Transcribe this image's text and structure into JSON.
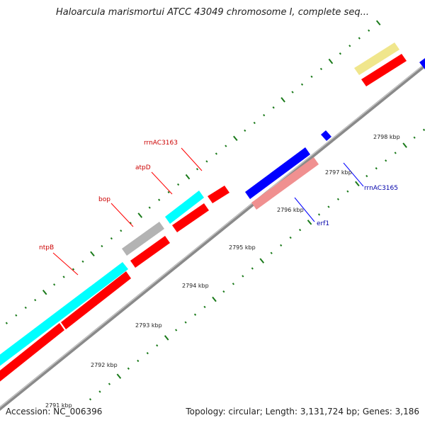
{
  "title": "Haloarcula marismortui ATCC 43049 chromosome I, complete seq...",
  "footer": {
    "accession": "Accession: NC_006396",
    "summary": "Topology: circular; Length: 3,131,724 bp; Genes: 3,186"
  },
  "colors": {
    "backbone": "#999999",
    "tick": "#1a7a1a",
    "forward_gene": "#ff0000",
    "reverse_gene": "#0000ff",
    "cyan_feature": "#00ffff",
    "grey_feature": "#b3b3b3",
    "pink_feature": "#f09090",
    "yellow_feature": "#f0e68c",
    "forward_label": "#cc0000",
    "reverse_label": "#0000aa"
  },
  "kbp_labels": [
    "2791 kbp",
    "2792 kbp",
    "2793 kbp",
    "2794 kbp",
    "2795 kbp",
    "2796 kbp",
    "2797 kbp",
    "2798 kbp"
  ],
  "gene_labels": {
    "forward": [
      "ntpB",
      "bop",
      "atpD",
      "rrnAC3163"
    ],
    "reverse": [
      "erf1",
      "rrnAC3165"
    ]
  }
}
